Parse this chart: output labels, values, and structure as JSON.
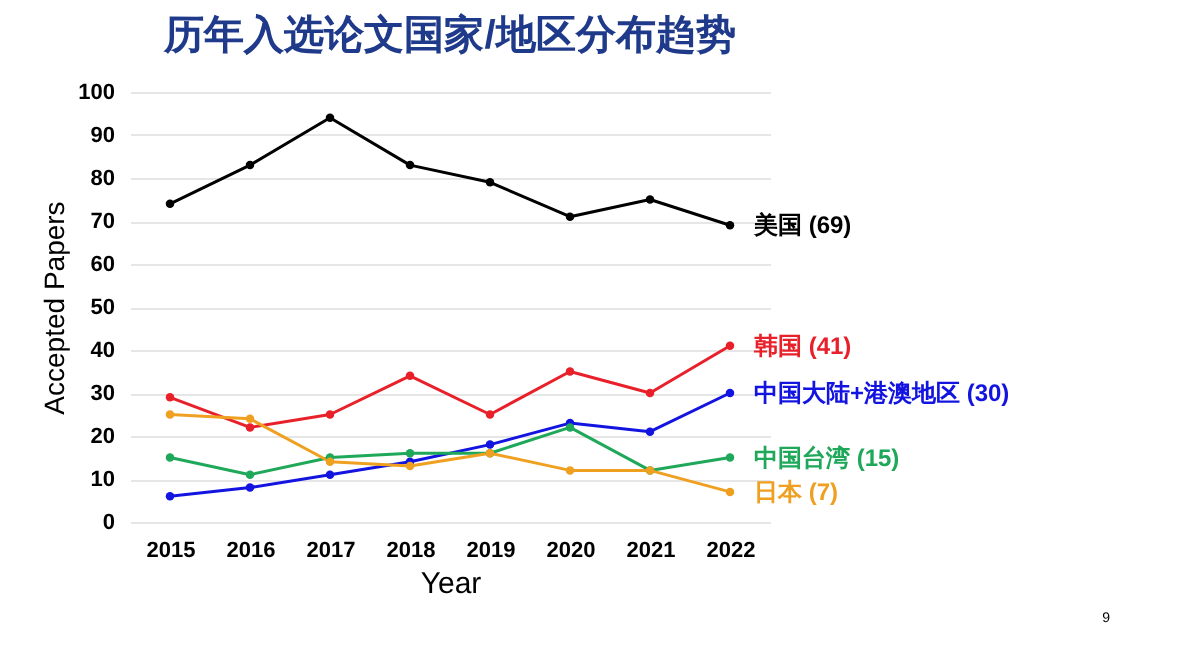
{
  "chart_data": {
    "type": "line",
    "title": "历年入选论文国家/地区分布趋势",
    "xlabel": "Year",
    "ylabel": "Accepted Papers",
    "categories": [
      "2015",
      "2016",
      "2017",
      "2018",
      "2019",
      "2020",
      "2021",
      "2022"
    ],
    "series": [
      {
        "name": "美国 (69)",
        "color": "#000000",
        "values": [
          74,
          83,
          94,
          83,
          79,
          71,
          75,
          69
        ]
      },
      {
        "name": "韩国 (41)",
        "color": "#e8202a",
        "values": [
          29,
          22,
          25,
          34,
          25,
          35,
          30,
          41
        ]
      },
      {
        "name": "中国大陆+港澳地区 (30)",
        "color": "#1414e0",
        "values": [
          6,
          8,
          11,
          14,
          18,
          23,
          21,
          30
        ]
      },
      {
        "name": "中国台湾 (15)",
        "color": "#1fa85a",
        "values": [
          15,
          11,
          15,
          16,
          16,
          22,
          12,
          15
        ]
      },
      {
        "name": "日本 (7)",
        "color": "#f0a020",
        "values": [
          25,
          24,
          14,
          13,
          16,
          12,
          12,
          7
        ]
      }
    ],
    "ylim": [
      0,
      100
    ],
    "yticks": [
      0,
      10,
      20,
      30,
      40,
      50,
      60,
      70,
      80,
      90,
      100
    ],
    "grid": "y",
    "marker": "circle",
    "line_style": "solid",
    "annotations": [
      "9"
    ]
  }
}
